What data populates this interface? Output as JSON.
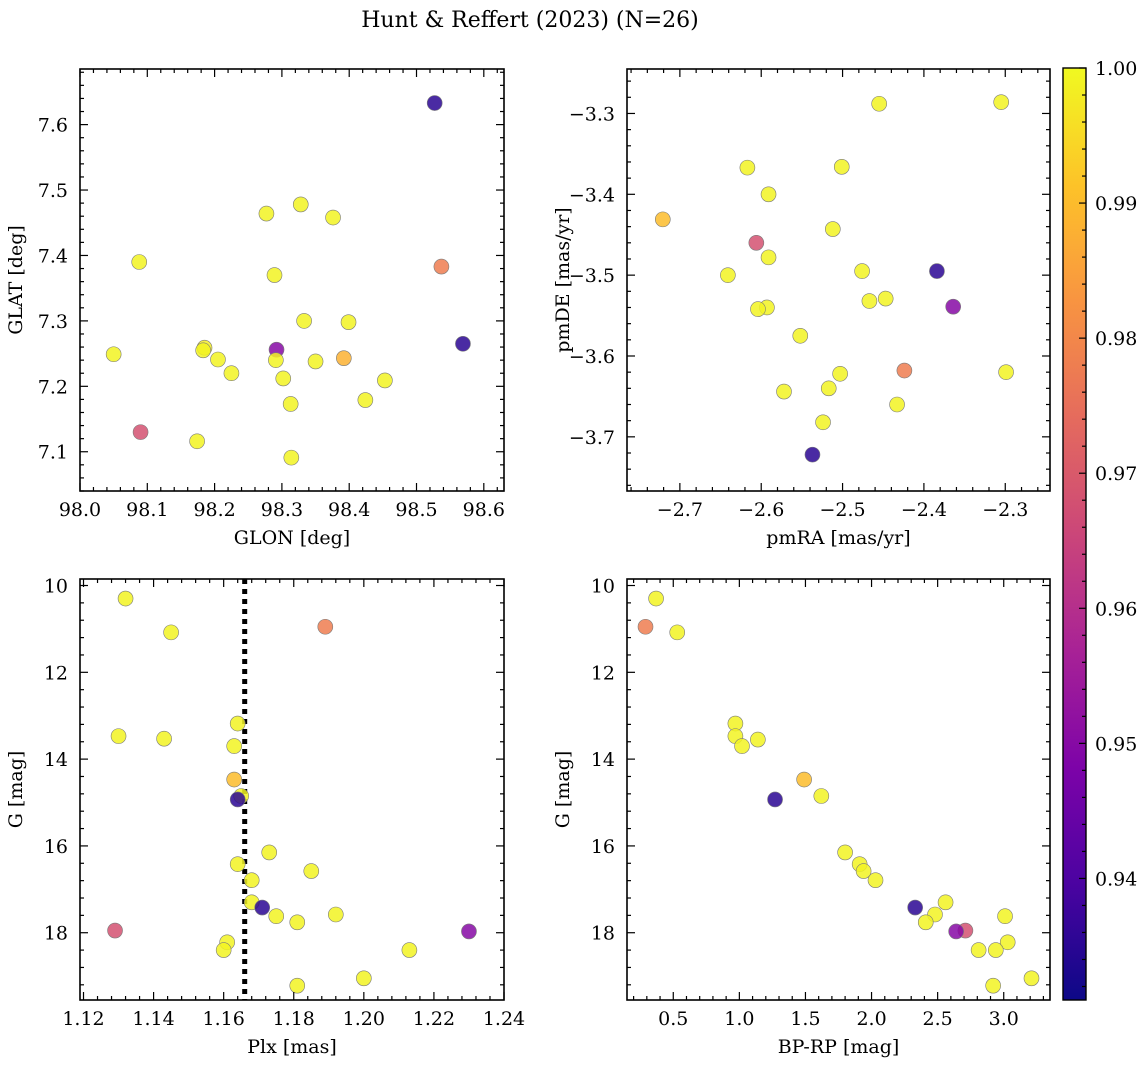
{
  "title": "Hunt & Reffert (2023) (N=26)",
  "colorbar": {
    "range": [
      0.931,
      1.0
    ],
    "ticks": [
      0.94,
      0.95,
      0.96,
      0.97,
      0.98,
      0.99,
      1.0
    ],
    "tick_labels": [
      "0.94",
      "0.95",
      "0.96",
      "0.97",
      "0.98",
      "0.99",
      "1.00"
    ],
    "colormap": "plasma"
  },
  "chart_data": [
    {
      "type": "scatter",
      "xlabel": "GLON [deg]",
      "ylabel": "GLAT [deg]",
      "xlim": [
        98.0,
        98.63
      ],
      "ylim": [
        7.04,
        7.685
      ],
      "xticks": [
        98.0,
        98.1,
        98.2,
        98.3,
        98.4,
        98.5,
        98.6
      ],
      "xtick_labels": [
        "98.0",
        "98.1",
        "98.2",
        "98.3",
        "98.4",
        "98.5",
        "98.6"
      ],
      "yticks": [
        7.1,
        7.2,
        7.3,
        7.4,
        7.5,
        7.6
      ],
      "ytick_labels": [
        "7.1",
        "7.2",
        "7.3",
        "7.4",
        "7.5",
        "7.6"
      ],
      "points": [
        {
          "x": 98.527,
          "y": 7.633,
          "c": 0.935
        },
        {
          "x": 98.328,
          "y": 7.478,
          "c": 0.999
        },
        {
          "x": 98.277,
          "y": 7.464,
          "c": 0.999
        },
        {
          "x": 98.376,
          "y": 7.458,
          "c": 0.999
        },
        {
          "x": 98.088,
          "y": 7.39,
          "c": 0.999
        },
        {
          "x": 98.537,
          "y": 7.383,
          "c": 0.978
        },
        {
          "x": 98.289,
          "y": 7.37,
          "c": 0.999
        },
        {
          "x": 98.333,
          "y": 7.3,
          "c": 0.999
        },
        {
          "x": 98.399,
          "y": 7.298,
          "c": 0.999
        },
        {
          "x": 98.569,
          "y": 7.265,
          "c": 0.935
        },
        {
          "x": 98.185,
          "y": 7.259,
          "c": 0.998
        },
        {
          "x": 98.292,
          "y": 7.256,
          "c": 0.95
        },
        {
          "x": 98.05,
          "y": 7.249,
          "c": 0.999
        },
        {
          "x": 98.392,
          "y": 7.243,
          "c": 0.988
        },
        {
          "x": 98.205,
          "y": 7.241,
          "c": 0.999
        },
        {
          "x": 98.291,
          "y": 7.24,
          "c": 0.999
        },
        {
          "x": 98.35,
          "y": 7.238,
          "c": 0.999
        },
        {
          "x": 98.225,
          "y": 7.22,
          "c": 0.999
        },
        {
          "x": 98.302,
          "y": 7.212,
          "c": 0.999
        },
        {
          "x": 98.453,
          "y": 7.209,
          "c": 0.999
        },
        {
          "x": 98.424,
          "y": 7.179,
          "c": 0.999
        },
        {
          "x": 98.313,
          "y": 7.173,
          "c": 0.999
        },
        {
          "x": 98.09,
          "y": 7.13,
          "c": 0.968
        },
        {
          "x": 98.174,
          "y": 7.116,
          "c": 0.999
        },
        {
          "x": 98.314,
          "y": 7.091,
          "c": 0.999
        },
        {
          "x": 98.183,
          "y": 7.255,
          "c": 0.999
        }
      ]
    },
    {
      "type": "scatter",
      "xlabel": "pmRA [mas/yr]",
      "ylabel": "pmDE [mas/yr]",
      "xlim": [
        -2.765,
        -2.245
      ],
      "ylim": [
        -3.767,
        -3.245
      ],
      "xticks": [
        -2.7,
        -2.6,
        -2.5,
        -2.4,
        -2.3
      ],
      "xtick_labels": [
        "−2.7",
        "−2.6",
        "−2.5",
        "−2.4",
        "−2.3"
      ],
      "yticks": [
        -3.7,
        -3.6,
        -3.5,
        -3.4,
        -3.3
      ],
      "ytick_labels": [
        "−3.7",
        "−3.6",
        "−3.5",
        "−3.4",
        "−3.3"
      ],
      "points": [
        {
          "x": -2.455,
          "y": -3.288,
          "c": 0.999
        },
        {
          "x": -2.305,
          "y": -3.286,
          "c": 0.999
        },
        {
          "x": -2.617,
          "y": -3.367,
          "c": 0.999
        },
        {
          "x": -2.501,
          "y": -3.366,
          "c": 0.999
        },
        {
          "x": -2.591,
          "y": -3.4,
          "c": 0.999
        },
        {
          "x": -2.721,
          "y": -3.431,
          "c": 0.99
        },
        {
          "x": -2.512,
          "y": -3.443,
          "c": 0.999
        },
        {
          "x": -2.606,
          "y": -3.46,
          "c": 0.968
        },
        {
          "x": -2.591,
          "y": -3.478,
          "c": 0.999
        },
        {
          "x": -2.384,
          "y": -3.495,
          "c": 0.935
        },
        {
          "x": -2.476,
          "y": -3.495,
          "c": 0.999
        },
        {
          "x": -2.641,
          "y": -3.5,
          "c": 0.999
        },
        {
          "x": -2.447,
          "y": -3.529,
          "c": 0.999
        },
        {
          "x": -2.467,
          "y": -3.532,
          "c": 0.999
        },
        {
          "x": -2.364,
          "y": -3.539,
          "c": 0.95
        },
        {
          "x": -2.593,
          "y": -3.54,
          "c": 0.999
        },
        {
          "x": -2.604,
          "y": -3.542,
          "c": 0.999
        },
        {
          "x": -2.552,
          "y": -3.575,
          "c": 0.999
        },
        {
          "x": -2.424,
          "y": -3.618,
          "c": 0.978
        },
        {
          "x": -2.299,
          "y": -3.62,
          "c": 0.999
        },
        {
          "x": -2.503,
          "y": -3.622,
          "c": 0.999
        },
        {
          "x": -2.517,
          "y": -3.64,
          "c": 0.999
        },
        {
          "x": -2.572,
          "y": -3.644,
          "c": 0.999
        },
        {
          "x": -2.433,
          "y": -3.66,
          "c": 0.999
        },
        {
          "x": -2.524,
          "y": -3.682,
          "c": 0.999
        },
        {
          "x": -2.537,
          "y": -3.722,
          "c": 0.935
        }
      ]
    },
    {
      "type": "scatter",
      "xlabel": "Plx [mas]",
      "ylabel": "G [mag]",
      "xlim": [
        1.119,
        1.24
      ],
      "ylim": [
        19.55,
        9.85
      ],
      "xticks": [
        1.12,
        1.14,
        1.16,
        1.18,
        1.2,
        1.22,
        1.24
      ],
      "xtick_labels": [
        "1.12",
        "1.14",
        "1.16",
        "1.18",
        "1.20",
        "1.22",
        "1.24"
      ],
      "yticks": [
        10,
        12,
        14,
        16,
        18
      ],
      "ytick_labels": [
        "10",
        "12",
        "14",
        "16",
        "18"
      ],
      "vline": {
        "x": 1.166,
        "style": "dotted",
        "color": "#000000"
      },
      "points": [
        {
          "x": 1.132,
          "y": 10.3,
          "c": 0.999
        },
        {
          "x": 1.145,
          "y": 11.08,
          "c": 0.999
        },
        {
          "x": 1.189,
          "y": 10.95,
          "c": 0.978
        },
        {
          "x": 1.164,
          "y": 13.18,
          "c": 0.999
        },
        {
          "x": 1.13,
          "y": 13.47,
          "c": 0.999
        },
        {
          "x": 1.143,
          "y": 13.53,
          "c": 0.999
        },
        {
          "x": 1.163,
          "y": 13.7,
          "c": 0.999
        },
        {
          "x": 1.163,
          "y": 14.47,
          "c": 0.99
        },
        {
          "x": 1.165,
          "y": 14.85,
          "c": 0.999
        },
        {
          "x": 1.164,
          "y": 14.93,
          "c": 0.935
        },
        {
          "x": 1.173,
          "y": 16.15,
          "c": 0.999
        },
        {
          "x": 1.164,
          "y": 16.42,
          "c": 0.999
        },
        {
          "x": 1.185,
          "y": 16.58,
          "c": 0.999
        },
        {
          "x": 1.168,
          "y": 16.79,
          "c": 0.999
        },
        {
          "x": 1.168,
          "y": 17.3,
          "c": 0.999
        },
        {
          "x": 1.171,
          "y": 17.42,
          "c": 0.935
        },
        {
          "x": 1.192,
          "y": 17.58,
          "c": 0.999
        },
        {
          "x": 1.175,
          "y": 17.62,
          "c": 0.999
        },
        {
          "x": 1.181,
          "y": 17.76,
          "c": 0.999
        },
        {
          "x": 1.129,
          "y": 17.95,
          "c": 0.968
        },
        {
          "x": 1.23,
          "y": 17.97,
          "c": 0.95
        },
        {
          "x": 1.161,
          "y": 18.22,
          "c": 0.999
        },
        {
          "x": 1.16,
          "y": 18.4,
          "c": 0.999
        },
        {
          "x": 1.213,
          "y": 18.4,
          "c": 0.999
        },
        {
          "x": 1.2,
          "y": 19.05,
          "c": 0.999
        },
        {
          "x": 1.181,
          "y": 19.22,
          "c": 0.999
        }
      ]
    },
    {
      "type": "scatter",
      "xlabel": "BP-RP [mag]",
      "ylabel": "G [mag]",
      "xlim": [
        0.15,
        3.35
      ],
      "ylim": [
        19.55,
        9.85
      ],
      "xticks": [
        0.5,
        1.0,
        1.5,
        2.0,
        2.5,
        3.0
      ],
      "xtick_labels": [
        "0.5",
        "1.0",
        "1.5",
        "2.0",
        "2.5",
        "3.0"
      ],
      "yticks": [
        10,
        12,
        14,
        16,
        18
      ],
      "ytick_labels": [
        "10",
        "12",
        "14",
        "16",
        "18"
      ],
      "points": [
        {
          "x": 0.37,
          "y": 10.3,
          "c": 0.999
        },
        {
          "x": 0.29,
          "y": 10.95,
          "c": 0.978
        },
        {
          "x": 0.53,
          "y": 11.08,
          "c": 0.999
        },
        {
          "x": 0.97,
          "y": 13.18,
          "c": 0.999
        },
        {
          "x": 0.97,
          "y": 13.47,
          "c": 0.999
        },
        {
          "x": 1.14,
          "y": 13.55,
          "c": 0.999
        },
        {
          "x": 1.02,
          "y": 13.7,
          "c": 0.999
        },
        {
          "x": 1.49,
          "y": 14.47,
          "c": 0.99
        },
        {
          "x": 1.62,
          "y": 14.85,
          "c": 0.999
        },
        {
          "x": 1.27,
          "y": 14.93,
          "c": 0.935
        },
        {
          "x": 1.8,
          "y": 16.15,
          "c": 0.999
        },
        {
          "x": 1.91,
          "y": 16.42,
          "c": 0.999
        },
        {
          "x": 1.94,
          "y": 16.58,
          "c": 0.999
        },
        {
          "x": 2.03,
          "y": 16.79,
          "c": 0.999
        },
        {
          "x": 2.56,
          "y": 17.3,
          "c": 0.999
        },
        {
          "x": 2.33,
          "y": 17.42,
          "c": 0.935
        },
        {
          "x": 2.48,
          "y": 17.58,
          "c": 0.999
        },
        {
          "x": 3.01,
          "y": 17.62,
          "c": 0.999
        },
        {
          "x": 2.41,
          "y": 17.76,
          "c": 0.999
        },
        {
          "x": 2.71,
          "y": 17.95,
          "c": 0.968
        },
        {
          "x": 2.64,
          "y": 17.97,
          "c": 0.95
        },
        {
          "x": 3.03,
          "y": 18.22,
          "c": 0.999
        },
        {
          "x": 2.81,
          "y": 18.4,
          "c": 0.999
        },
        {
          "x": 2.94,
          "y": 18.4,
          "c": 0.999
        },
        {
          "x": 3.21,
          "y": 19.05,
          "c": 0.999
        },
        {
          "x": 2.92,
          "y": 19.22,
          "c": 0.999
        }
      ]
    }
  ]
}
